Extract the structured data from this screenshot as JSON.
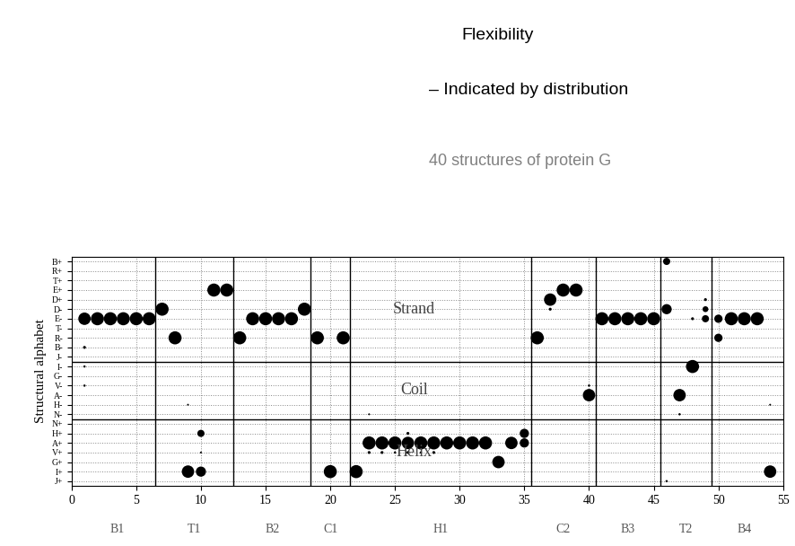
{
  "chart_data": {
    "type": "scatter",
    "texts": [
      "Flexibility",
      "– Indicated by distribution",
      "40 structures of protein G"
    ],
    "ylabel": "Structural alphabet",
    "categories": [
      "J+",
      "I+",
      "G+",
      "V+",
      "A+",
      "H+",
      "N+",
      "N-",
      "H-",
      "A-",
      "V-",
      "G-",
      "I-",
      "J-",
      "B-",
      "R-",
      "T-",
      "E-",
      "D-",
      "D+",
      "E+",
      "T+",
      "R+",
      "B+"
    ],
    "groups": [
      {
        "label": "Helix",
        "first": "J+",
        "last": "N+"
      },
      {
        "label": "Coil",
        "first": "N-",
        "last": "I-"
      },
      {
        "label": "Strand",
        "first": "J-",
        "last": "B+"
      }
    ],
    "segments": [
      {
        "label": "B1",
        "start": 0.5,
        "end": 6.5
      },
      {
        "label": "T1",
        "start": 6.5,
        "end": 12.5
      },
      {
        "label": "B2",
        "start": 12.5,
        "end": 18.5
      },
      {
        "label": "C1",
        "start": 18.5,
        "end": 21.5
      },
      {
        "label": "H1",
        "start": 21.5,
        "end": 35.5
      },
      {
        "label": "C2",
        "start": 35.5,
        "end": 40.5
      },
      {
        "label": "B3",
        "start": 40.5,
        "end": 45.5
      },
      {
        "label": "T2",
        "start": 45.5,
        "end": 49.5
      },
      {
        "label": "B4",
        "start": 49.5,
        "end": 54.5
      }
    ],
    "x": [
      1,
      1,
      1,
      1,
      2,
      3,
      4,
      5,
      6,
      7,
      8,
      9,
      9,
      10,
      10,
      10,
      11,
      12,
      13,
      14,
      15,
      16,
      17,
      18,
      19,
      20,
      21,
      22,
      23,
      23,
      23,
      24,
      24,
      25,
      25,
      26,
      26,
      26,
      27,
      27,
      28,
      28,
      29,
      30,
      31,
      32,
      33,
      34,
      35,
      35,
      36,
      37,
      37,
      38,
      39,
      40,
      40,
      41,
      42,
      43,
      44,
      45,
      46,
      46,
      46,
      47,
      47,
      48,
      48,
      49,
      49,
      49,
      50,
      50,
      51,
      52,
      53,
      54,
      54
    ],
    "y": [
      "E-",
      "B-",
      "I-",
      "V-",
      "E-",
      "E-",
      "E-",
      "E-",
      "E-",
      "D-",
      "R-",
      "I+",
      "H-",
      "I+",
      "H+",
      "V+",
      "E+",
      "E+",
      "R-",
      "E-",
      "E-",
      "E-",
      "E-",
      "D-",
      "R-",
      "I+",
      "R-",
      "I+",
      "A+",
      "V+",
      "N-",
      "A+",
      "V+",
      "A+",
      "V+",
      "A+",
      "H+",
      "V+",
      "A+",
      "V+",
      "A+",
      "V+",
      "A+",
      "A+",
      "A+",
      "A+",
      "G+",
      "A+",
      "H+",
      "A+",
      "R-",
      "D+",
      "D-",
      "E+",
      "E+",
      "A-",
      "V-",
      "E-",
      "E-",
      "E-",
      "E-",
      "E-",
      "B+",
      "D-",
      "J+",
      "A-",
      "N-",
      "I-",
      "E-",
      "D-",
      "D+",
      "E-",
      "E-",
      "R-",
      "E-",
      "E-",
      "E-",
      "I+",
      "H-"
    ],
    "sizes": [
      0.9,
      0.05,
      0.03,
      0.03,
      1.0,
      1.0,
      1.0,
      1.0,
      1.0,
      1.0,
      1.0,
      0.9,
      0.02,
      0.6,
      0.3,
      0.02,
      1.0,
      1.0,
      1.0,
      1.0,
      1.0,
      1.0,
      1.0,
      1.0,
      1.0,
      1.0,
      1.0,
      1.0,
      1.0,
      0.05,
      0.02,
      1.0,
      0.05,
      1.0,
      0.03,
      0.9,
      0.05,
      0.05,
      1.0,
      0.03,
      1.0,
      0.05,
      1.0,
      1.0,
      1.0,
      1.0,
      0.9,
      0.9,
      0.5,
      0.5,
      1.0,
      0.9,
      0.05,
      1.0,
      1.0,
      0.9,
      0.03,
      1.0,
      1.0,
      1.0,
      1.0,
      1.0,
      0.3,
      0.6,
      0.03,
      0.9,
      0.03,
      1.0,
      0.05,
      0.2,
      0.05,
      0.3,
      0.4,
      0.4,
      1.0,
      1.0,
      1.0,
      0.9,
      0.02
    ],
    "color": "#000000",
    "xlim": [
      0,
      55
    ],
    "xticks": [
      0,
      5,
      10,
      15,
      20,
      25,
      30,
      35,
      40,
      45,
      50,
      55
    ],
    "grid": true
  }
}
